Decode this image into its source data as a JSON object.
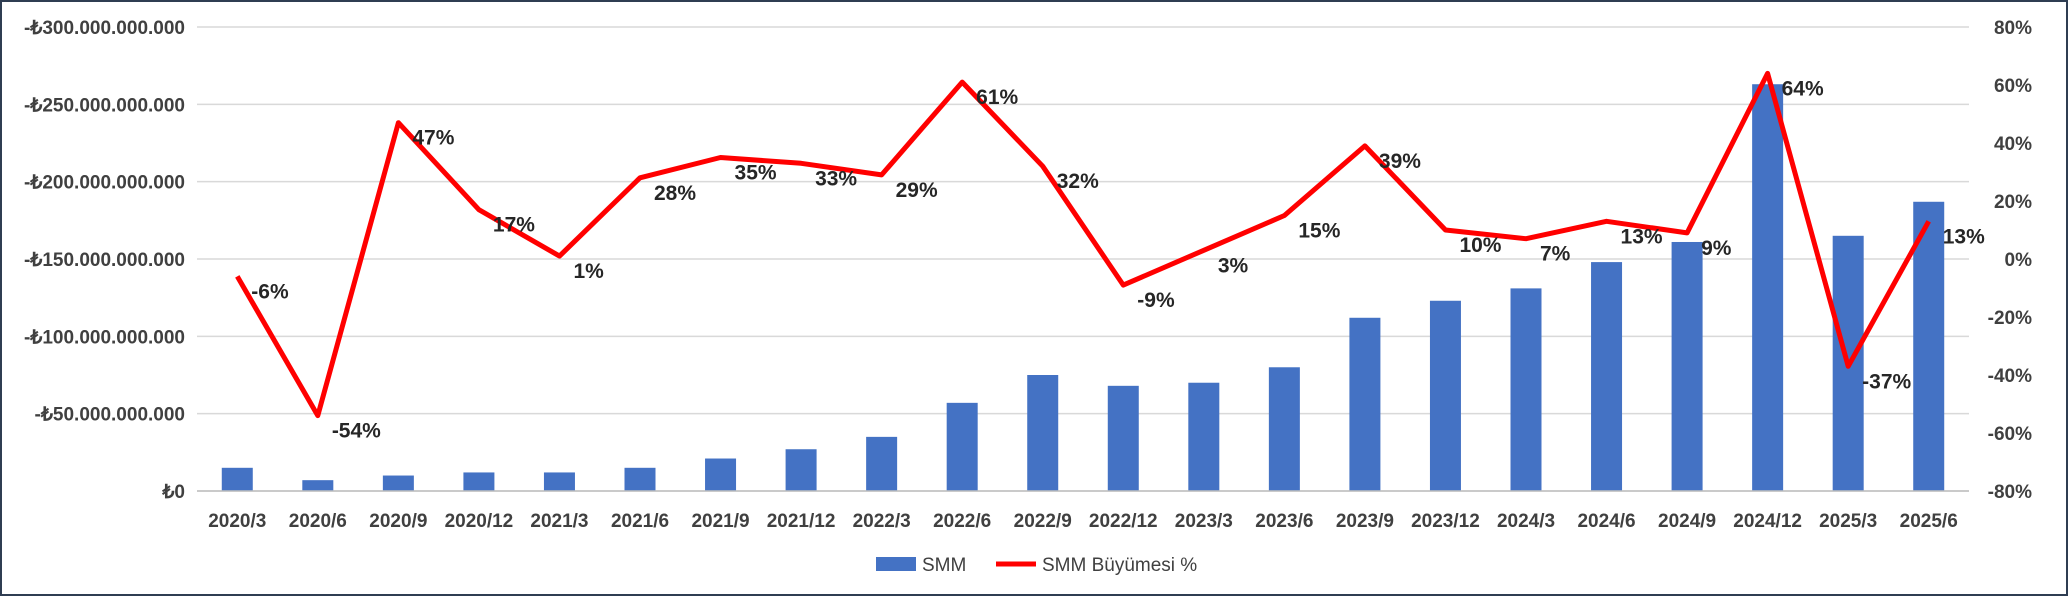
{
  "chart_data": {
    "type": "bar",
    "categories": [
      "2020/3",
      "2020/6",
      "2020/9",
      "2020/12",
      "2021/3",
      "2021/6",
      "2021/9",
      "2021/12",
      "2022/3",
      "2022/6",
      "2022/9",
      "2022/12",
      "2023/3",
      "2023/6",
      "2023/9",
      "2023/12",
      "2024/3",
      "2024/6",
      "2024/9",
      "2024/12",
      "2025/3",
      "2025/6"
    ],
    "series": [
      {
        "name": "SMM",
        "type": "bar",
        "axis": "left",
        "color": "#4472C4",
        "values": [
          15000000000,
          7000000000,
          10000000000,
          12000000000,
          12000000000,
          15000000000,
          21000000000,
          27000000000,
          35000000000,
          57000000000,
          75000000000,
          68000000000,
          70000000000,
          80000000000,
          112000000000,
          123000000000,
          131000000000,
          148000000000,
          161000000000,
          263000000000,
          165000000000,
          187000000000
        ]
      },
      {
        "name": "SMM Büyümesi %",
        "type": "line",
        "axis": "right",
        "color": "#FF0000",
        "values": [
          -6,
          -54,
          47,
          17,
          1,
          28,
          35,
          33,
          29,
          61,
          32,
          -9,
          3,
          15,
          39,
          10,
          7,
          13,
          9,
          64,
          -37,
          13
        ],
        "labels": [
          "-6%",
          "-54%",
          "47%",
          "17%",
          "1%",
          "28%",
          "35%",
          "33%",
          "29%",
          "61%",
          "32%",
          "-9%",
          "3%",
          "15%",
          "39%",
          "10%",
          "7%",
          "13%",
          "9%",
          "64%",
          "-37%",
          "13%"
        ]
      }
    ],
    "y_left": {
      "ylim": [
        0,
        300000000000
      ],
      "ticks": [
        0,
        50000000000,
        100000000000,
        150000000000,
        200000000000,
        250000000000,
        300000000000
      ],
      "tick_labels": [
        "₺0",
        "-₺50.000.000.000",
        "-₺100.000.000.000",
        "-₺150.000.000.000",
        "-₺200.000.000.000",
        "-₺250.000.000.000",
        "-₺300.000.000.000"
      ]
    },
    "y_right": {
      "ylim": [
        -80,
        80
      ],
      "ticks": [
        -80,
        -60,
        -40,
        -20,
        0,
        20,
        40,
        60,
        80
      ],
      "tick_labels": [
        "-80%",
        "-60%",
        "-40%",
        "-20%",
        "0%",
        "20%",
        "40%",
        "60%",
        "80%"
      ]
    },
    "grid": true,
    "legend": {
      "placement": "bottom",
      "items": [
        {
          "label": "SMM",
          "kind": "bar",
          "color": "#4472C4"
        },
        {
          "label": "SMM Büyümesi %",
          "kind": "line",
          "color": "#FF0000"
        }
      ]
    }
  }
}
